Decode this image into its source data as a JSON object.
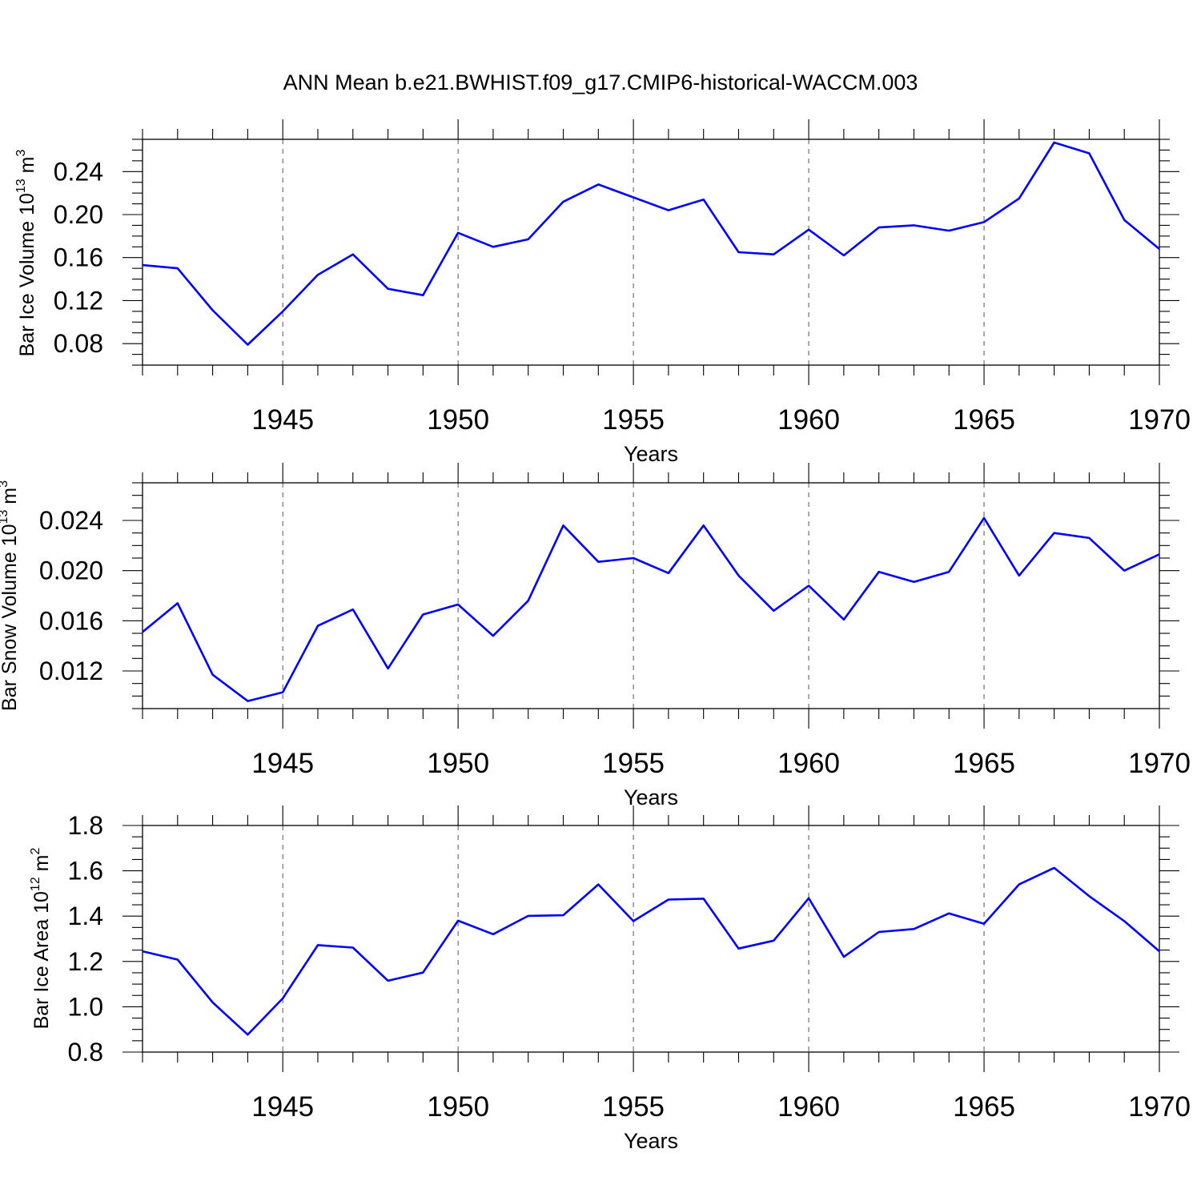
{
  "title": "ANN Mean b.e21.BWHIST.f09_g17.CMIP6-historical-WACCM.003",
  "colors": {
    "line": "#0000ff",
    "grid": "#555555"
  },
  "chart_data": [
    {
      "type": "line",
      "xlabel": "Years",
      "ylabel": {
        "base": "Bar Ice Volume 10",
        "exponent": "13",
        "unit": " m",
        "unit_exponent": "3"
      },
      "xlim": [
        1941,
        1970
      ],
      "ylim": [
        0.06,
        0.27
      ],
      "x_ticks": [
        1945,
        1950,
        1955,
        1960,
        1965,
        1970
      ],
      "y_ticks": [
        0.08,
        0.12,
        0.16,
        0.2,
        0.24
      ],
      "y_tick_labels": [
        "0.08",
        "0.12",
        "0.16",
        "0.20",
        "0.24"
      ],
      "grid": "dashed vertical at labeled years",
      "x": [
        1941,
        1942,
        1943,
        1944,
        1945,
        1946,
        1947,
        1948,
        1949,
        1950,
        1951,
        1952,
        1953,
        1954,
        1955,
        1956,
        1957,
        1958,
        1959,
        1960,
        1961,
        1962,
        1963,
        1964,
        1965,
        1966,
        1967,
        1968,
        1969,
        1970
      ],
      "values": [
        0.153,
        0.15,
        0.111,
        0.079,
        0.11,
        0.144,
        0.163,
        0.131,
        0.125,
        0.183,
        0.17,
        0.177,
        0.212,
        0.228,
        0.216,
        0.204,
        0.214,
        0.165,
        0.163,
        0.186,
        0.162,
        0.188,
        0.19,
        0.185,
        0.193,
        0.215,
        0.267,
        0.257,
        0.195,
        0.168
      ]
    },
    {
      "type": "line",
      "xlabel": "Years",
      "ylabel": {
        "base": "Bar Snow Volume 10",
        "exponent": "13",
        "unit": " m",
        "unit_exponent": "3"
      },
      "xlim": [
        1941,
        1970
      ],
      "ylim": [
        0.009,
        0.027
      ],
      "x_ticks": [
        1945,
        1950,
        1955,
        1960,
        1965,
        1970
      ],
      "y_ticks": [
        0.012,
        0.016,
        0.02,
        0.024
      ],
      "y_tick_labels": [
        "0.012",
        "0.016",
        "0.020",
        "0.024"
      ],
      "grid": "dashed vertical at labeled years",
      "x": [
        1941,
        1942,
        1943,
        1944,
        1945,
        1946,
        1947,
        1948,
        1949,
        1950,
        1951,
        1952,
        1953,
        1954,
        1955,
        1956,
        1957,
        1958,
        1959,
        1960,
        1961,
        1962,
        1963,
        1964,
        1965,
        1966,
        1967,
        1968,
        1969,
        1970
      ],
      "values": [
        0.0151,
        0.0174,
        0.0117,
        0.0096,
        0.0103,
        0.0156,
        0.0169,
        0.0122,
        0.0165,
        0.0173,
        0.0148,
        0.0176,
        0.0236,
        0.0207,
        0.021,
        0.0198,
        0.0236,
        0.0196,
        0.0168,
        0.0188,
        0.0161,
        0.0199,
        0.0191,
        0.0199,
        0.0242,
        0.0196,
        0.023,
        0.0226,
        0.02,
        0.0213
      ]
    },
    {
      "type": "line",
      "xlabel": "Years",
      "ylabel": {
        "base": "Bar Ice Area 10",
        "exponent": "12",
        "unit": " m",
        "unit_exponent": "2"
      },
      "xlim": [
        1941,
        1970
      ],
      "ylim": [
        0.8,
        1.8
      ],
      "x_ticks": [
        1945,
        1950,
        1955,
        1960,
        1965,
        1970
      ],
      "y_ticks": [
        0.8,
        1.0,
        1.2,
        1.4,
        1.6,
        1.8
      ],
      "y_tick_labels": [
        "0.8",
        "1.0",
        "1.2",
        "1.4",
        "1.6",
        "1.8"
      ],
      "grid": "dashed vertical at labeled years",
      "x": [
        1941,
        1942,
        1943,
        1944,
        1945,
        1946,
        1947,
        1948,
        1949,
        1950,
        1951,
        1952,
        1953,
        1954,
        1955,
        1956,
        1957,
        1958,
        1959,
        1960,
        1961,
        1962,
        1963,
        1964,
        1965,
        1966,
        1967,
        1968,
        1969,
        1970
      ],
      "values": [
        1.245,
        1.208,
        1.019,
        0.877,
        1.037,
        1.272,
        1.261,
        1.115,
        1.151,
        1.38,
        1.32,
        1.401,
        1.404,
        1.54,
        1.378,
        1.473,
        1.477,
        1.257,
        1.292,
        1.479,
        1.22,
        1.33,
        1.343,
        1.412,
        1.366,
        1.54,
        1.613,
        1.488,
        1.378,
        1.245
      ]
    }
  ]
}
